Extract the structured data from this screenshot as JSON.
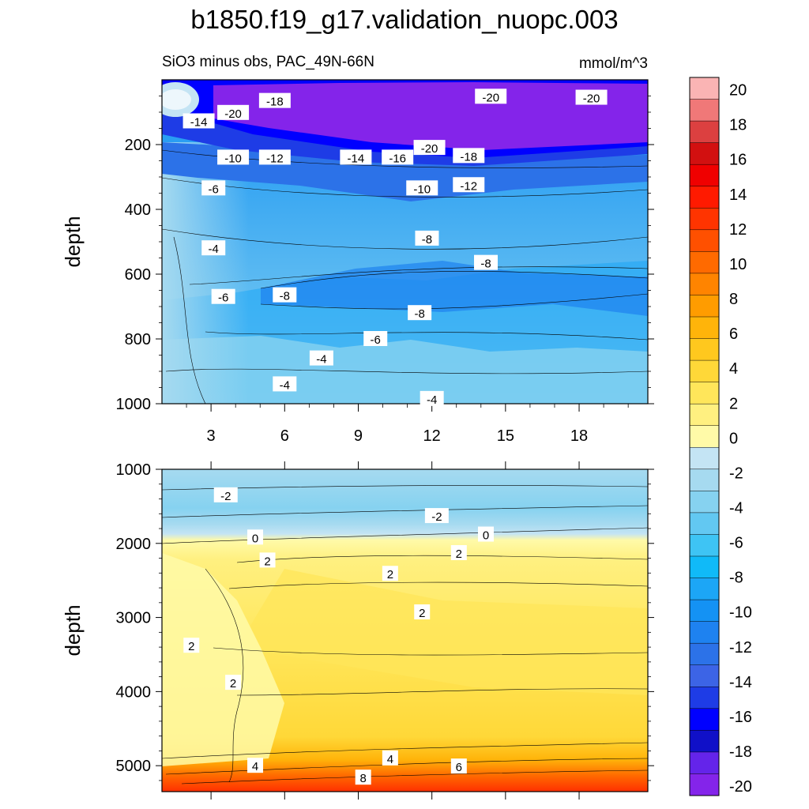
{
  "figure": {
    "title": "b1850.f19_g17.validation_nuopc.003",
    "subtitle_left": "SiO3 minus obs, PAC_49N-66N",
    "subtitle_right": "mmol/m^3"
  },
  "chart_data": [
    {
      "type": "contour",
      "name": "upper-panel",
      "ylabel": "depth",
      "xlim": [
        1,
        20.8
      ],
      "ylim": [
        0,
        1000
      ],
      "y_inverted": true,
      "xticks": [
        3,
        6,
        9,
        12,
        15,
        18
      ],
      "yticks": [
        200,
        400,
        600,
        800,
        1000
      ],
      "contour_labels": [
        {
          "x": 5.6,
          "y": 65,
          "text": "-18"
        },
        {
          "x": 14.4,
          "y": 52,
          "text": "-20"
        },
        {
          "x": 18.5,
          "y": 55,
          "text": "-20"
        },
        {
          "x": 2.5,
          "y": 128,
          "text": "-14"
        },
        {
          "x": 3.9,
          "y": 102,
          "text": "-20"
        },
        {
          "x": 3.9,
          "y": 240,
          "text": "-10"
        },
        {
          "x": 5.6,
          "y": 240,
          "text": "-12"
        },
        {
          "x": 8.9,
          "y": 240,
          "text": "-14"
        },
        {
          "x": 10.6,
          "y": 240,
          "text": "-16"
        },
        {
          "x": 11.9,
          "y": 210,
          "text": "-20"
        },
        {
          "x": 13.5,
          "y": 235,
          "text": "-18"
        },
        {
          "x": 13.5,
          "y": 325,
          "text": "-12"
        },
        {
          "x": 11.6,
          "y": 335,
          "text": "-10"
        },
        {
          "x": 3.1,
          "y": 335,
          "text": "-6"
        },
        {
          "x": 11.8,
          "y": 490,
          "text": "-8"
        },
        {
          "x": 3.1,
          "y": 520,
          "text": "-4"
        },
        {
          "x": 14.2,
          "y": 565,
          "text": "-8"
        },
        {
          "x": 3.5,
          "y": 670,
          "text": "-6"
        },
        {
          "x": 6.0,
          "y": 665,
          "text": "-8"
        },
        {
          "x": 11.5,
          "y": 720,
          "text": "-8"
        },
        {
          "x": 9.7,
          "y": 800,
          "text": "-6"
        },
        {
          "x": 7.5,
          "y": 860,
          "text": "-4"
        },
        {
          "x": 6.0,
          "y": 940,
          "text": "-4"
        },
        {
          "x": 12.0,
          "y": 985,
          "text": "-4"
        }
      ]
    },
    {
      "type": "contour",
      "name": "lower-panel",
      "ylabel": "depth",
      "xlim": [
        1,
        20.8
      ],
      "ylim": [
        1000,
        5350
      ],
      "y_inverted": true,
      "yticks": [
        1000,
        2000,
        3000,
        4000,
        5000
      ],
      "contour_labels": [
        {
          "x": 3.6,
          "y": 1350,
          "text": "-2"
        },
        {
          "x": 12.2,
          "y": 1630,
          "text": "-2"
        },
        {
          "x": 4.8,
          "y": 1920,
          "text": "0"
        },
        {
          "x": 14.2,
          "y": 1880,
          "text": "0"
        },
        {
          "x": 13.1,
          "y": 2130,
          "text": "2"
        },
        {
          "x": 5.3,
          "y": 2230,
          "text": "2"
        },
        {
          "x": 10.3,
          "y": 2410,
          "text": "2"
        },
        {
          "x": 11.6,
          "y": 2930,
          "text": "2"
        },
        {
          "x": 2.2,
          "y": 3380,
          "text": "2"
        },
        {
          "x": 3.9,
          "y": 3880,
          "text": "2"
        },
        {
          "x": 4.8,
          "y": 5000,
          "text": "4"
        },
        {
          "x": 10.3,
          "y": 4900,
          "text": "4"
        },
        {
          "x": 13.1,
          "y": 5010,
          "text": "6"
        },
        {
          "x": 9.2,
          "y": 5160,
          "text": "8"
        }
      ]
    },
    {
      "type": "colorbar",
      "name": "colorbar",
      "unit": "mmol/m^3",
      "levels": [
        -20,
        -18,
        -16,
        -14,
        -12,
        -10,
        -8,
        -6,
        -4,
        -2,
        0,
        2,
        4,
        6,
        8,
        10,
        12,
        14,
        16,
        18,
        20
      ],
      "colors": [
        "#8424ea",
        "#6424ea",
        "#1010c8",
        "#0000ff",
        "#1e3ce6",
        "#3c64e6",
        "#2c72e8",
        "#1e82f0",
        "#1492f4",
        "#1ca6f6",
        "#10baf8",
        "#3ec4f4",
        "#62c8f2",
        "#86d2f0",
        "#a6daf0",
        "#c4e4f4",
        "#fffaa8",
        "#fff080",
        "#ffe65a",
        "#ffd838",
        "#ffc81e",
        "#ffb40a",
        "#ff9c00",
        "#ff8400",
        "#ff6a00",
        "#ff5000",
        "#ff3400",
        "#ff1a00",
        "#f00000",
        "#d21010",
        "#dc4040",
        "#f07878",
        "#fab4b4"
      ]
    }
  ]
}
